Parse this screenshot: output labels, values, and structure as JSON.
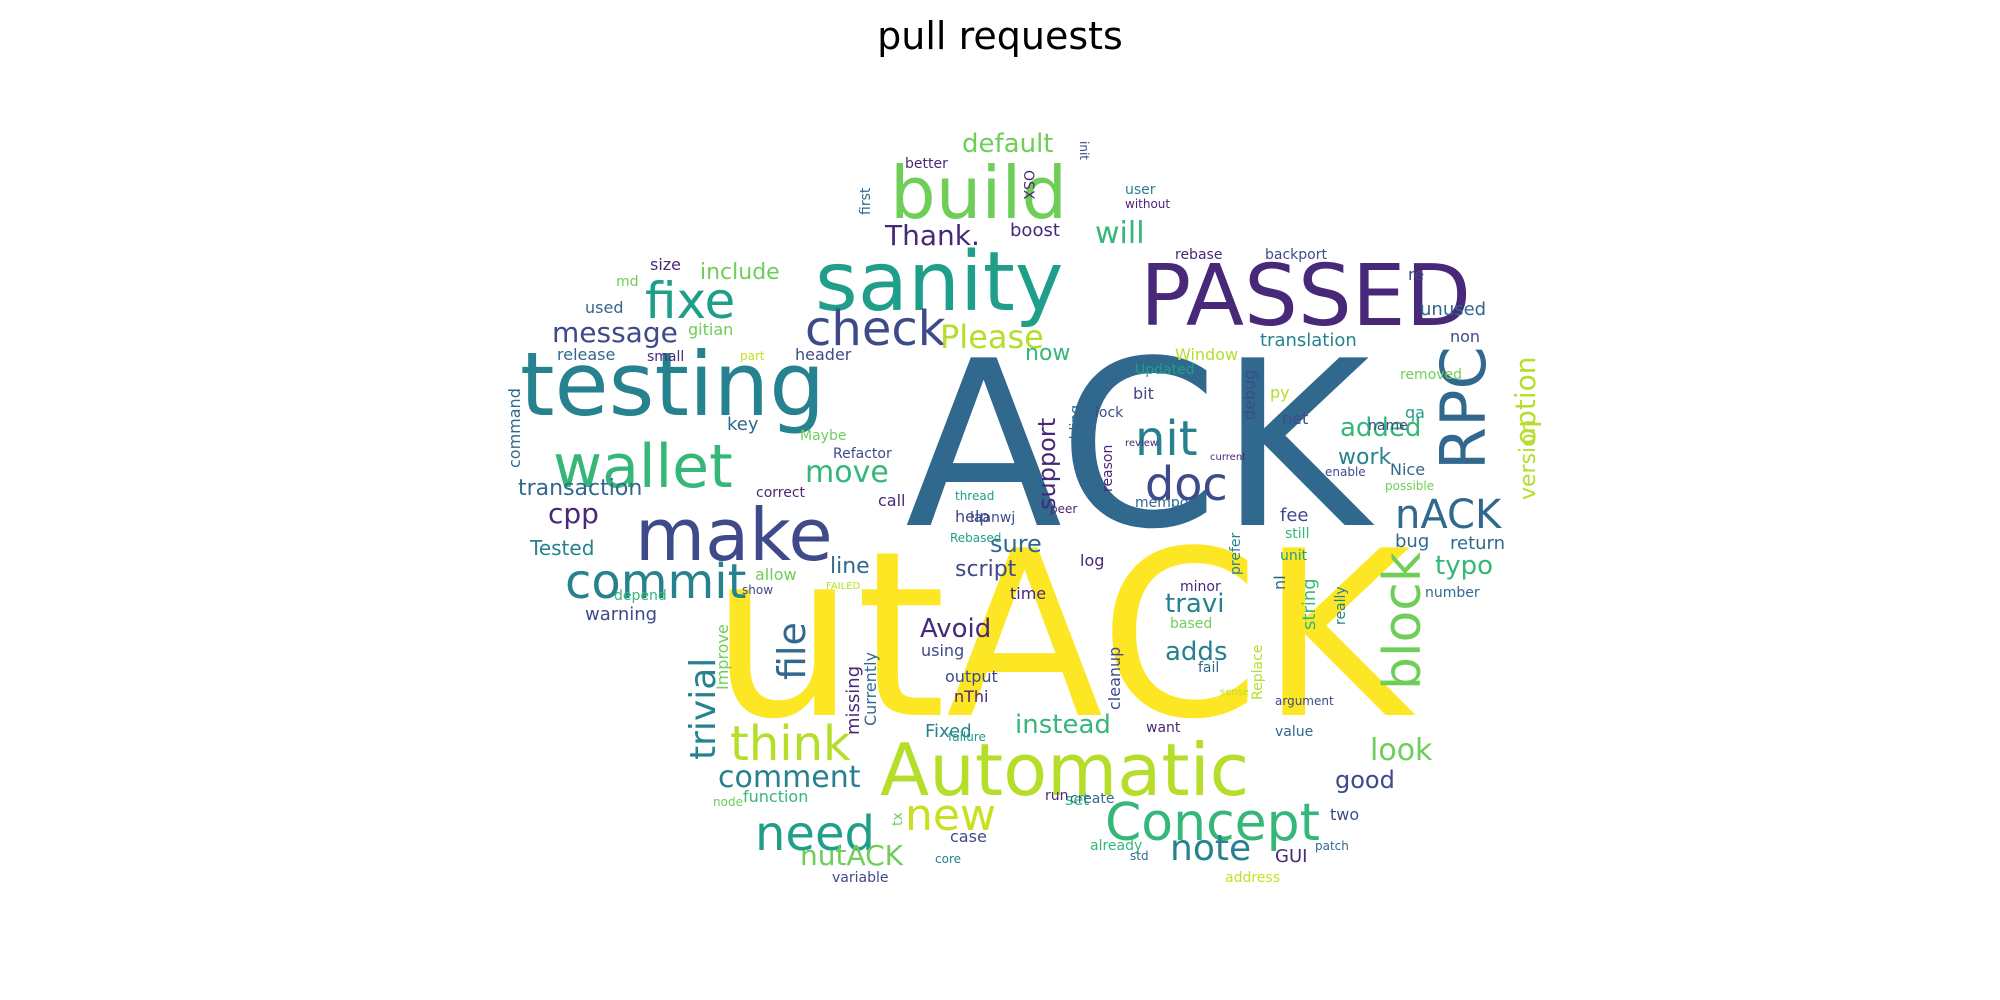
{
  "title": "pull requests",
  "palette": "viridis",
  "words": [
    {
      "text": "ACK",
      "color": "#31688e"
    },
    {
      "text": "utACK",
      "color": "#fde725"
    },
    {
      "text": "PASSED",
      "color": "#482878"
    },
    {
      "text": "testing",
      "color": "#26828e"
    },
    {
      "text": "sanity",
      "color": "#1f9e89"
    },
    {
      "text": "build",
      "color": "#6ece58"
    },
    {
      "text": "Automatic",
      "color": "#b5de2b"
    },
    {
      "text": "make",
      "color": "#3e4a89"
    },
    {
      "text": "wallet",
      "color": "#35b779"
    },
    {
      "text": "RPC",
      "color": "#31688e"
    },
    {
      "text": "Concept",
      "color": "#35b779"
    },
    {
      "text": "commit",
      "color": "#26828e"
    },
    {
      "text": "need",
      "color": "#1f9e89"
    },
    {
      "text": "think",
      "color": "#b5de2b"
    },
    {
      "text": "new",
      "color": "#c8e020"
    },
    {
      "text": "check",
      "color": "#3e4a89"
    },
    {
      "text": "fixe",
      "color": "#1f9e89"
    },
    {
      "text": "nit",
      "color": "#26828e"
    },
    {
      "text": "doc",
      "color": "#3e4a89"
    },
    {
      "text": "block",
      "color": "#6ece58"
    },
    {
      "text": "nACK",
      "color": "#31688e"
    },
    {
      "text": "trivial",
      "color": "#26828e"
    },
    {
      "text": "file",
      "color": "#31688e"
    },
    {
      "text": "note",
      "color": "#26828e"
    },
    {
      "text": "comment",
      "color": "#26828e"
    },
    {
      "text": "look",
      "color": "#6ece58"
    },
    {
      "text": "Please",
      "color": "#b5de2b"
    },
    {
      "text": "move",
      "color": "#35b779"
    },
    {
      "text": "will",
      "color": "#35b779"
    },
    {
      "text": "Thank.",
      "color": "#482878"
    },
    {
      "text": "default",
      "color": "#6ece58"
    },
    {
      "text": "option",
      "color": "#b5de2b"
    },
    {
      "text": "version",
      "color": "#b5de2b"
    },
    {
      "text": "message",
      "color": "#3e4a89"
    },
    {
      "text": "transaction",
      "color": "#31688e"
    },
    {
      "text": "cpp",
      "color": "#482878"
    },
    {
      "text": "include",
      "color": "#6ece58"
    },
    {
      "text": "work",
      "color": "#26828e"
    },
    {
      "text": "added",
      "color": "#35b779"
    },
    {
      "text": "typo",
      "color": "#35b779"
    },
    {
      "text": "travi",
      "color": "#26828e"
    },
    {
      "text": "adds",
      "color": "#26828e"
    },
    {
      "text": "Avoid",
      "color": "#482878"
    },
    {
      "text": "instead",
      "color": "#35b779"
    },
    {
      "text": "good",
      "color": "#3e4a89"
    },
    {
      "text": "nutACK",
      "color": "#6ece58"
    },
    {
      "text": "script",
      "color": "#3e4a89"
    },
    {
      "text": "line",
      "color": "#31688e"
    },
    {
      "text": "sure",
      "color": "#31688e"
    },
    {
      "text": "support",
      "color": "#482878"
    },
    {
      "text": "now",
      "color": "#35b779"
    },
    {
      "text": "Tested",
      "color": "#26828e"
    },
    {
      "text": "warning",
      "color": "#3e4a89"
    },
    {
      "text": "GUI",
      "color": "#482878"
    },
    {
      "text": "boost",
      "color": "#482878"
    },
    {
      "text": "translation",
      "color": "#26828e"
    },
    {
      "text": "unused",
      "color": "#31688e"
    },
    {
      "text": "return",
      "color": "#31688e"
    },
    {
      "text": "bug",
      "color": "#31688e"
    },
    {
      "text": "fee",
      "color": "#3e4a89"
    },
    {
      "text": "debug",
      "color": "#3e4a89"
    },
    {
      "text": "release",
      "color": "#31688e"
    },
    {
      "text": "key",
      "color": "#31688e"
    },
    {
      "text": "Fixed",
      "color": "#26828e"
    },
    {
      "text": "case",
      "color": "#3e4a89"
    },
    {
      "text": "function",
      "color": "#35b779"
    },
    {
      "text": "header",
      "color": "#3e4a89"
    },
    {
      "text": "gitian",
      "color": "#6ece58"
    },
    {
      "text": "used",
      "color": "#31688e"
    },
    {
      "text": "size",
      "color": "#482878"
    },
    {
      "text": "md",
      "color": "#6ece58"
    },
    {
      "text": "small",
      "color": "#482878"
    },
    {
      "text": "command",
      "color": "#31688e"
    },
    {
      "text": "depend",
      "color": "#35b779"
    },
    {
      "text": "Improve",
      "color": "#6ece58"
    },
    {
      "text": "missing",
      "color": "#482878"
    },
    {
      "text": "Currently",
      "color": "#31688e"
    },
    {
      "text": "output",
      "color": "#3e4a89"
    },
    {
      "text": "using",
      "color": "#3e4a89"
    },
    {
      "text": "time",
      "color": "#482878"
    },
    {
      "text": "help",
      "color": "#3e4a89"
    },
    {
      "text": "call",
      "color": "#482878"
    },
    {
      "text": "log",
      "color": "#482878"
    },
    {
      "text": "cleanup",
      "color": "#3e4a89"
    },
    {
      "text": "minor",
      "color": "#482878"
    },
    {
      "text": "based",
      "color": "#6ece58"
    },
    {
      "text": "fail",
      "color": "#31688e"
    },
    {
      "text": "want",
      "color": "#482878"
    },
    {
      "text": "nThi",
      "color": "#482878"
    },
    {
      "text": "set",
      "color": "#35b779"
    },
    {
      "text": "already",
      "color": "#35b779"
    },
    {
      "text": "std",
      "color": "#31688e"
    },
    {
      "text": "create",
      "color": "#31688e"
    },
    {
      "text": "run",
      "color": "#482878"
    },
    {
      "text": "patch",
      "color": "#31688e"
    },
    {
      "text": "two",
      "color": "#3e4a89"
    },
    {
      "text": "value",
      "color": "#31688e"
    },
    {
      "text": "argument",
      "color": "#3e4a89"
    },
    {
      "text": "string",
      "color": "#35b779"
    },
    {
      "text": "number",
      "color": "#31688e"
    },
    {
      "text": "really",
      "color": "#26828e"
    },
    {
      "text": "prefer",
      "color": "#26828e"
    },
    {
      "text": "nI",
      "color": "#31688e"
    },
    {
      "text": "unit",
      "color": "#1f9e89"
    },
    {
      "text": "still",
      "color": "#35b779"
    },
    {
      "text": "possible",
      "color": "#6ece58"
    },
    {
      "text": "Nice",
      "color": "#31688e"
    },
    {
      "text": "mempool",
      "color": "#31688e"
    },
    {
      "text": "reason",
      "color": "#482878"
    },
    {
      "text": "bit",
      "color": "#3e4a89"
    },
    {
      "text": "peer",
      "color": "#482878"
    },
    {
      "text": "thread",
      "color": "#1f9e89"
    },
    {
      "text": "adding",
      "color": "#31688e"
    },
    {
      "text": "lock",
      "color": "#3e4a89"
    },
    {
      "text": "Updated",
      "color": "#1f9e89"
    },
    {
      "text": "net",
      "color": "#3e4a89"
    },
    {
      "text": "name",
      "color": "#3e4a89"
    },
    {
      "text": "qa",
      "color": "#1f9e89"
    },
    {
      "text": "enable",
      "color": "#3e4a89"
    },
    {
      "text": "py",
      "color": "#b5de2b"
    },
    {
      "text": "removed",
      "color": "#6ece58"
    },
    {
      "text": "non",
      "color": "#3e4a89"
    },
    {
      "text": "re",
      "color": "#3e4a89"
    },
    {
      "text": "backport",
      "color": "#3e4a89"
    },
    {
      "text": "rebase",
      "color": "#482878"
    },
    {
      "text": "without",
      "color": "#482878"
    },
    {
      "text": "user",
      "color": "#26828e"
    },
    {
      "text": "better",
      "color": "#482878"
    },
    {
      "text": "OSX",
      "color": "#482878"
    },
    {
      "text": "init",
      "color": "#3e4a89"
    },
    {
      "text": "first",
      "color": "#31688e"
    },
    {
      "text": "Window",
      "color": "#b5de2b"
    },
    {
      "text": "allow",
      "color": "#6ece58"
    },
    {
      "text": "show",
      "color": "#3e4a89"
    },
    {
      "text": "laanwj",
      "color": "#3e4a89"
    },
    {
      "text": "Rebased",
      "color": "#1f9e89"
    },
    {
      "text": "correct",
      "color": "#482878"
    },
    {
      "text": "Maybe",
      "color": "#6ece58"
    },
    {
      "text": "Refactor",
      "color": "#3e4a89"
    },
    {
      "text": "node",
      "color": "#6ece58"
    },
    {
      "text": "variable",
      "color": "#3e4a89"
    },
    {
      "text": "core",
      "color": "#26828e"
    },
    {
      "text": "tx",
      "color": "#6ece58"
    },
    {
      "text": "Replace",
      "color": "#b5de2b"
    },
    {
      "text": "address",
      "color": "#c8e020"
    },
    {
      "text": "failure",
      "color": "#1f9e89"
    },
    {
      "text": "sense",
      "color": "#b5de2b"
    },
    {
      "text": "FAILED",
      "color": "#b5de2b"
    },
    {
      "text": "part",
      "color": "#c8e020"
    },
    {
      "text": "current",
      "color": "#482878"
    },
    {
      "text": "review",
      "color": "#482878"
    }
  ]
}
